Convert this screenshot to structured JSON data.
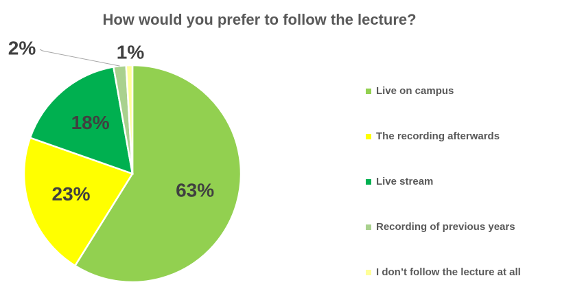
{
  "chart_data": {
    "type": "pie",
    "title": "How would you prefer to follow the lecture?",
    "categories": [
      "Live on campus",
      "The recording afterwards",
      "Live stream",
      "Recording of previous years",
      "I don’t follow the lecture at all"
    ],
    "values": [
      63,
      23,
      18,
      2,
      1
    ],
    "value_labels": [
      "63%",
      "23%",
      "18%",
      "2%",
      "1%"
    ],
    "colors": [
      "#92d050",
      "#ffff00",
      "#00b050",
      "#a9d18e",
      "#ffff99"
    ],
    "legend": "right"
  }
}
